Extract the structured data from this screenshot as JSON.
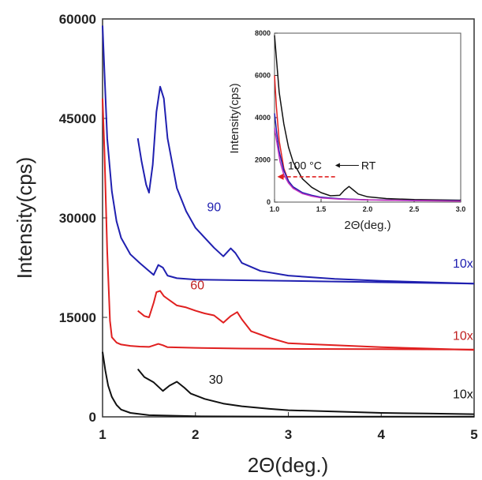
{
  "chart_data": [
    {
      "type": "line",
      "xlabel": "2Θ(deg.)",
      "ylabel": "Intensity(cps)",
      "xlim": [
        1,
        5
      ],
      "ylim": [
        0,
        60000
      ],
      "x_ticks": [
        "1",
        "2",
        "3",
        "4",
        "5"
      ],
      "y_ticks": [
        "0",
        "15000",
        "30000",
        "45000",
        "60000"
      ],
      "grid": false,
      "series": [
        {
          "name": "90",
          "color": "#2020b0",
          "x": [
            1.0,
            1.02,
            1.05,
            1.1,
            1.15,
            1.2,
            1.3,
            1.4,
            1.5,
            1.55,
            1.6,
            1.65,
            1.7,
            1.8,
            2.0,
            2.5,
            3.0,
            4.0,
            5.0
          ],
          "y": [
            59000,
            52000,
            42000,
            34000,
            29500,
            27000,
            24500,
            23200,
            22000,
            21400,
            22900,
            22500,
            21300,
            20900,
            20700,
            20600,
            20500,
            20300,
            20100
          ]
        },
        {
          "name": "90 (10x)",
          "color": "#2020b0",
          "x": [
            1.38,
            1.42,
            1.47,
            1.5,
            1.54,
            1.58,
            1.62,
            1.66,
            1.7,
            1.8,
            1.9,
            2.0,
            2.2,
            2.3,
            2.38,
            2.43,
            2.5,
            2.7,
            3.0,
            3.5,
            4.0,
            4.5,
            5.0
          ],
          "y": [
            42000,
            38500,
            35000,
            33800,
            38000,
            46000,
            49800,
            48000,
            42000,
            34500,
            31000,
            28500,
            25500,
            24200,
            25400,
            24700,
            23200,
            22000,
            21300,
            20800,
            20500,
            20300,
            20100
          ]
        },
        {
          "name": "60",
          "color": "#e02020",
          "x": [
            1.0,
            1.02,
            1.05,
            1.08,
            1.1,
            1.15,
            1.2,
            1.3,
            1.4,
            1.5,
            1.6,
            1.65,
            1.7,
            2.0,
            2.5,
            3.0,
            4.0,
            5.0
          ],
          "y": [
            48000,
            40000,
            25000,
            14500,
            12000,
            11200,
            10900,
            10700,
            10600,
            10550,
            11000,
            10800,
            10500,
            10400,
            10300,
            10250,
            10200,
            10150
          ]
        },
        {
          "name": "60 (10x)",
          "color": "#e02020",
          "x": [
            1.38,
            1.45,
            1.5,
            1.55,
            1.58,
            1.62,
            1.66,
            1.7,
            1.8,
            1.9,
            2.0,
            2.1,
            2.2,
            2.3,
            2.38,
            2.45,
            2.5,
            2.6,
            2.8,
            3.0,
            3.5,
            4.0,
            4.5,
            5.0
          ],
          "y": [
            16000,
            15200,
            15000,
            17200,
            18800,
            19000,
            18200,
            17800,
            16800,
            16500,
            16000,
            15600,
            15300,
            14200,
            15200,
            15800,
            14700,
            12900,
            11900,
            11100,
            10800,
            10500,
            10300,
            10100
          ]
        },
        {
          "name": "30",
          "color": "#111111",
          "x": [
            1.0,
            1.03,
            1.06,
            1.1,
            1.15,
            1.2,
            1.3,
            1.5,
            2.0,
            3.0,
            5.0
          ],
          "y": [
            9800,
            7000,
            4700,
            3000,
            1800,
            1100,
            600,
            250,
            80,
            40,
            20
          ]
        },
        {
          "name": "30 (10x)",
          "color": "#111111",
          "x": [
            1.38,
            1.45,
            1.55,
            1.65,
            1.72,
            1.8,
            1.88,
            1.95,
            2.1,
            2.3,
            2.5,
            2.8,
            3.0,
            3.5,
            4.0,
            4.5,
            5.0
          ],
          "y": [
            7200,
            6000,
            5200,
            3900,
            4700,
            5300,
            4400,
            3500,
            2700,
            2000,
            1600,
            1200,
            1000,
            800,
            600,
            500,
            400
          ]
        }
      ],
      "curve_labels": [
        {
          "text": "90",
          "x": 2.2,
          "y": 31000,
          "color": "#2020b0"
        },
        {
          "text": "60",
          "x": 2.02,
          "y": 19200,
          "color": "#c02020"
        },
        {
          "text": "30",
          "x": 2.22,
          "y": 5000,
          "color": "#111111"
        },
        {
          "text": "10x",
          "x": 4.88,
          "y": 22500,
          "color": "#2020b0"
        },
        {
          "text": "10x",
          "x": 4.88,
          "y": 11600,
          "color": "#c02020"
        },
        {
          "text": "10x",
          "x": 4.88,
          "y": 2800,
          "color": "#111111"
        }
      ]
    },
    {
      "type": "line",
      "xlabel": "2Θ(deg.)",
      "ylabel": "Intensity(cps)",
      "xlim": [
        1.0,
        3.0
      ],
      "ylim": [
        0,
        8000
      ],
      "x_ticks": [
        "1.0",
        "1.5",
        "2.0",
        "2.5",
        "3.0"
      ],
      "y_ticks": [
        "0",
        "2000",
        "4000",
        "6000",
        "8000"
      ],
      "grid": false,
      "series": [
        {
          "name": "RT",
          "color": "#111111",
          "x": [
            1.0,
            1.02,
            1.05,
            1.1,
            1.15,
            1.2,
            1.3,
            1.4,
            1.5,
            1.6,
            1.7,
            1.75,
            1.8,
            1.85,
            1.9,
            2.0,
            2.2,
            2.5,
            3.0
          ],
          "y": [
            7900,
            6800,
            5200,
            3700,
            2600,
            1900,
            1100,
            700,
            450,
            300,
            320,
            560,
            740,
            560,
            380,
            250,
            170,
            120,
            90
          ]
        },
        {
          "name": "red",
          "color": "#e02020",
          "x": [
            1.0,
            1.02,
            1.05,
            1.1,
            1.15,
            1.2,
            1.3,
            1.4,
            1.5,
            1.7,
            2.0,
            2.5,
            3.0
          ],
          "y": [
            6000,
            4500,
            2900,
            1600,
            1000,
            700,
            420,
            300,
            220,
            150,
            110,
            80,
            60
          ]
        },
        {
          "name": "blue",
          "color": "#2020b0",
          "x": [
            1.0,
            1.02,
            1.05,
            1.1,
            1.15,
            1.2,
            1.3,
            1.4,
            1.5,
            1.7,
            2.0,
            2.5,
            3.0
          ],
          "y": [
            4200,
            3400,
            2400,
            1500,
            1000,
            720,
            450,
            320,
            230,
            160,
            110,
            80,
            60
          ]
        },
        {
          "name": "magenta",
          "color": "#c030c0",
          "x": [
            1.0,
            1.03,
            1.06,
            1.1,
            1.15,
            1.2,
            1.3,
            1.4,
            1.5,
            1.7,
            2.0,
            2.5,
            3.0
          ],
          "y": [
            3500,
            2700,
            1900,
            1300,
            900,
            650,
            400,
            280,
            200,
            140,
            100,
            70,
            50
          ]
        }
      ],
      "annotation": {
        "text": "100 °C",
        "text_end": "RT",
        "x": 1.55,
        "y": 1550
      },
      "dashed_arrow": {
        "from_x": 1.65,
        "to_x": 1.03,
        "y": 1200,
        "color": "#e02020"
      }
    }
  ]
}
